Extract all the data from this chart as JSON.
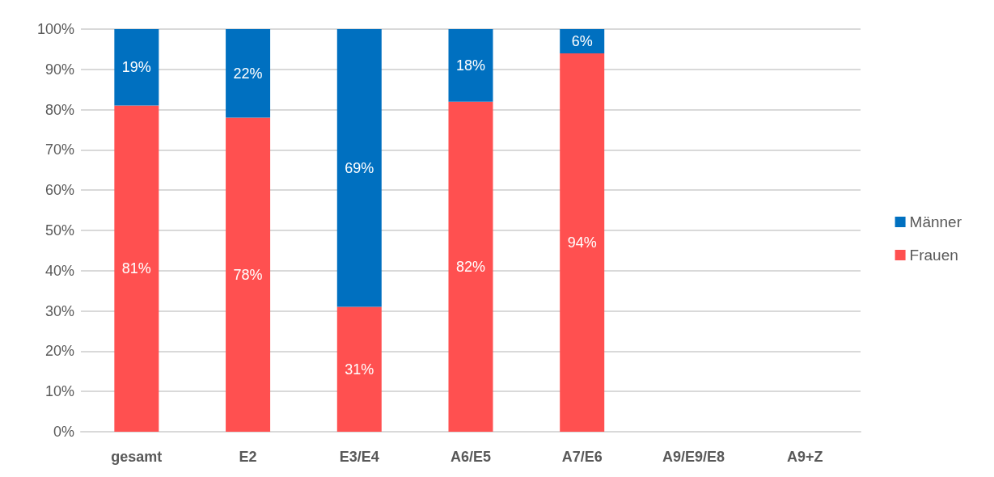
{
  "chart_data": {
    "type": "bar",
    "stacked": true,
    "categories": [
      "gesamt",
      "E2",
      "E3/E4",
      "A6/E5",
      "A7/E6",
      "A9/E9/E8",
      "A9+Z"
    ],
    "series": [
      {
        "name": "Frauen",
        "color": "#ff5050",
        "values": [
          81,
          78,
          31,
          82,
          94,
          0,
          0
        ],
        "value_labels": [
          "81%",
          "78%",
          "31%",
          "82%",
          "94%",
          null,
          null
        ]
      },
      {
        "name": "Männer",
        "color": "#0070c0",
        "values": [
          19,
          22,
          69,
          18,
          6,
          0,
          0
        ],
        "value_labels": [
          "19%",
          "22%",
          "69%",
          "18%",
          "6%",
          null,
          null
        ]
      }
    ],
    "ylim": [
      0,
      100
    ],
    "yticks": [
      {
        "value": 0,
        "label": "0%"
      },
      {
        "value": 10,
        "label": "10%"
      },
      {
        "value": 20,
        "label": "20%"
      },
      {
        "value": 30,
        "label": "30%"
      },
      {
        "value": 40,
        "label": "40%"
      },
      {
        "value": 50,
        "label": "50%"
      },
      {
        "value": 60,
        "label": "60%"
      },
      {
        "value": 70,
        "label": "70%"
      },
      {
        "value": 80,
        "label": "80%"
      },
      {
        "value": 90,
        "label": "90%"
      },
      {
        "value": 100,
        "label": "100%"
      }
    ],
    "grid": "y",
    "legend": "right"
  }
}
